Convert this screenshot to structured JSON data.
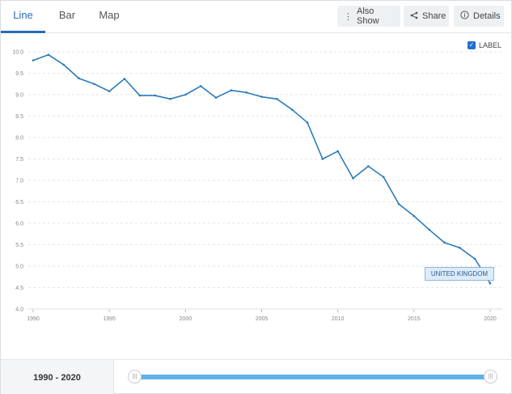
{
  "tabs": [
    {
      "label": "Line",
      "active": true
    },
    {
      "label": "Bar",
      "active": false
    },
    {
      "label": "Map",
      "active": false
    }
  ],
  "toolbar": {
    "also_show_label": "Also Show",
    "share_label": "Share",
    "details_label": "Details"
  },
  "label_toggle": {
    "label": "LABEL",
    "checked": true
  },
  "series_label": "UNITED KINGDOM",
  "range": {
    "label": "1990 - 2020",
    "start": 1990,
    "end": 2020
  },
  "colors": {
    "accent": "#2a6cb5",
    "line": "#2b7bb9",
    "slider": "#5fb3e6"
  },
  "chart_data": {
    "type": "line",
    "title": "",
    "xlabel": "",
    "ylabel": "",
    "ylim": [
      4.0,
      10.0
    ],
    "yticks": [
      "4.0",
      "4.5",
      "5.0",
      "5.5",
      "6.0",
      "6.5",
      "7.0",
      "7.5",
      "8.0",
      "8.5",
      "9.0",
      "9.5",
      "10.0"
    ],
    "xticks": [
      "1990",
      "1995",
      "2000",
      "2005",
      "2010",
      "2015",
      "2020"
    ],
    "grid": true,
    "series": [
      {
        "name": "UNITED KINGDOM",
        "x": [
          1990,
          1991,
          1992,
          1993,
          1994,
          1995,
          1996,
          1997,
          1998,
          1999,
          2000,
          2001,
          2002,
          2003,
          2004,
          2005,
          2006,
          2007,
          2008,
          2009,
          2010,
          2011,
          2012,
          2013,
          2014,
          2015,
          2016,
          2017,
          2018,
          2019,
          2020
        ],
        "y": [
          9.8,
          9.93,
          9.7,
          9.38,
          9.25,
          9.08,
          9.37,
          8.98,
          8.98,
          8.9,
          9.0,
          9.2,
          8.93,
          9.1,
          9.05,
          8.95,
          8.9,
          8.65,
          8.35,
          7.5,
          7.68,
          7.05,
          7.33,
          7.08,
          6.45,
          6.17,
          5.85,
          5.55,
          5.43,
          5.17,
          4.6
        ]
      }
    ]
  }
}
